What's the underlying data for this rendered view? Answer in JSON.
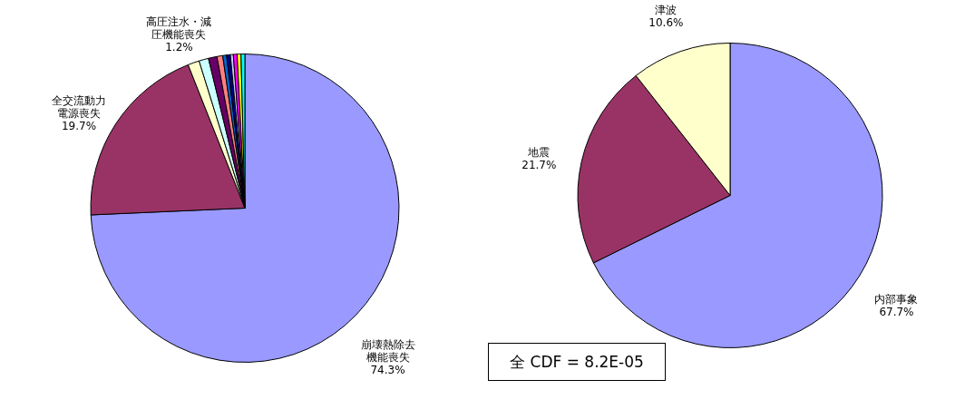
{
  "chart_data": [
    {
      "type": "pie",
      "categories": [
        "崩壊熱除去機能喪失",
        "全交流動力電源喪失",
        "高圧注水・減圧機能喪失",
        null,
        null,
        null,
        null,
        null,
        null,
        null,
        null,
        null
      ],
      "values": [
        74.3,
        19.7,
        1.2,
        1.0,
        0.9,
        0.6,
        0.4,
        0.4,
        0.3,
        0.4,
        0.4,
        0.4
      ],
      "colors": [
        "#9999ff",
        "#993366",
        "#ffffcc",
        "#ccffff",
        "#660066",
        "#ff8080",
        "#0066cc",
        "#000080",
        "#ccccff",
        "#ff00ff",
        "#ffff00",
        "#00ffff"
      ],
      "value_labels": [
        "74.3%",
        "19.7%",
        "1.2%",
        null,
        null,
        null,
        null,
        null,
        null,
        null,
        null,
        null
      ],
      "legend": false,
      "annotations": [
        "全 CDF = 8.2E-05"
      ]
    },
    {
      "type": "pie",
      "categories": [
        "内部事象",
        "地震",
        "津波"
      ],
      "values": [
        67.7,
        21.7,
        10.6
      ],
      "colors": [
        "#9999ff",
        "#993366",
        "#ffffcc"
      ],
      "value_labels": [
        "67.7%",
        "21.7%",
        "10.6%"
      ],
      "legend": false
    }
  ]
}
